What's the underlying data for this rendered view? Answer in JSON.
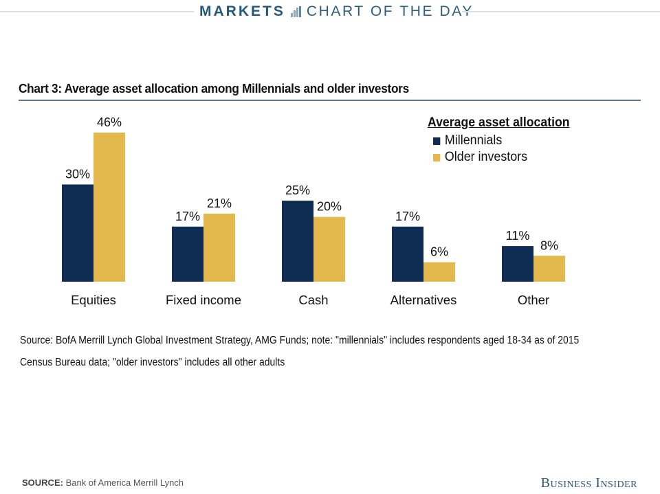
{
  "header": {
    "section": "MARKETS",
    "subtitle": "CHART OF THE DAY"
  },
  "chart_title": "Chart 3: Average asset allocation among Millennials and older investors",
  "legend": {
    "title": "Average asset allocation",
    "items": [
      {
        "label": "Millennials",
        "color": "#0f2d52"
      },
      {
        "label": "Older investors",
        "color": "#e3b94d"
      }
    ]
  },
  "chart_data": {
    "type": "bar",
    "title": "Chart 3: Average asset allocation among Millennials and older investors",
    "xlabel": "",
    "ylabel": "",
    "categories": [
      "Equities",
      "Fixed income",
      "Cash",
      "Alternatives",
      "Other"
    ],
    "series": [
      {
        "name": "Millennials",
        "values": [
          30,
          17,
          25,
          17,
          11
        ],
        "color": "#0f2d52"
      },
      {
        "name": "Older investors",
        "values": [
          46,
          21,
          20,
          6,
          8
        ],
        "color": "#e3b94d"
      }
    ],
    "value_suffix": "%",
    "ylim": [
      0,
      46
    ],
    "grid": false,
    "legend_position": "top-right"
  },
  "notes": {
    "line1": "Source: BofA Merrill Lynch Global Investment Strategy, AMG Funds; note: \"millennials\" includes respondents aged 18-34 as of 2015",
    "line2": "Census Bureau data; \"older investors\" includes all other adults"
  },
  "footer": {
    "source_label": "SOURCE:",
    "source_text": " Bank of America Merrill Lynch",
    "brand": "Business Insider"
  }
}
